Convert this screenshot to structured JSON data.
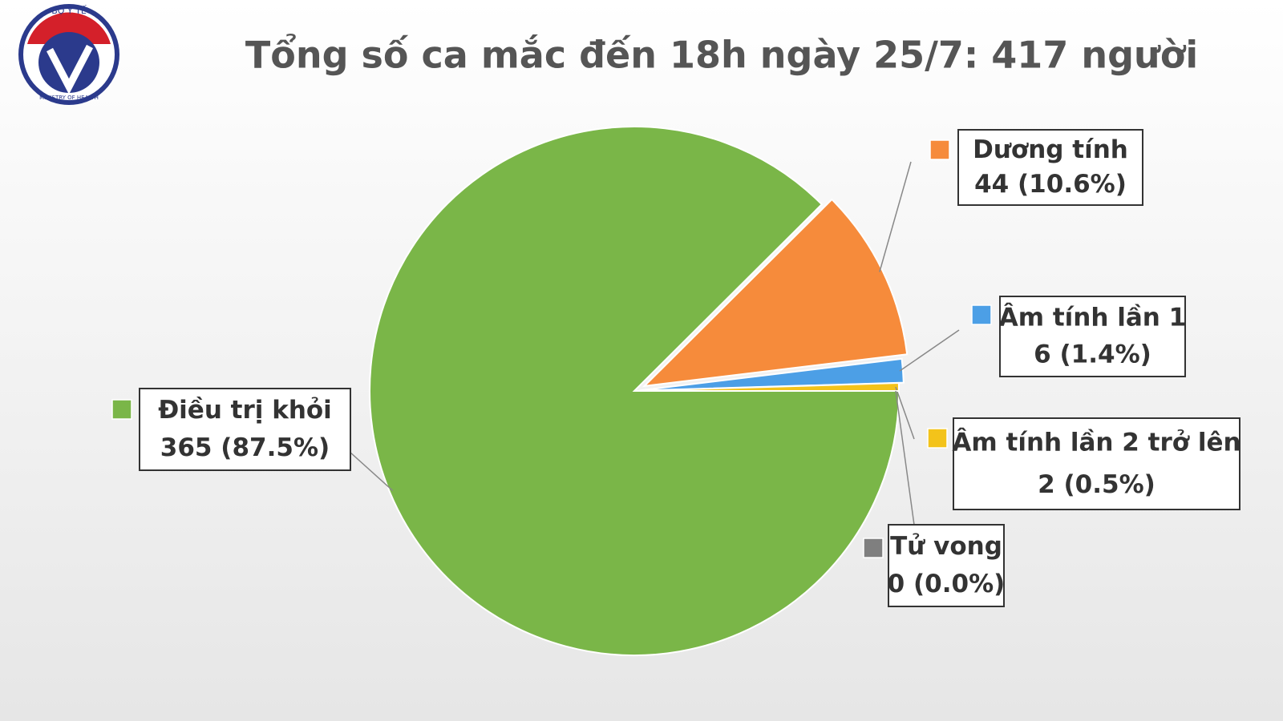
{
  "logo": {
    "top": "BỘ Y TẾ",
    "bottom": "MINISTRY OF HEALTH"
  },
  "chart_data": {
    "type": "pie",
    "title": "Tổng số ca mắc đến 18h ngày 25/7: 417 người",
    "categories": [
      "Điều trị khỏi",
      "Dương tính",
      "Âm tính lần 1",
      "Âm tính lần 2 trở lên",
      "Tử vong"
    ],
    "values": [
      365,
      44,
      6,
      2,
      0
    ],
    "value_labels": [
      "365 (87.5%)",
      "44 (10.6%)",
      "6 (1.4%)",
      "2 (0.5%)",
      "0 (0.0%)"
    ],
    "colors": [
      "#7ab648",
      "#f68b3b",
      "#4c9fe6",
      "#f3c31a",
      "#7f7f7f"
    ]
  }
}
